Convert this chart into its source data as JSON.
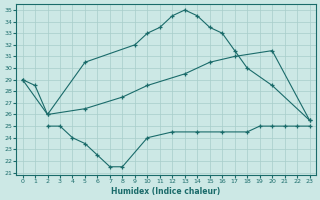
{
  "xlabel": "Humidex (Indice chaleur)",
  "xlim": [
    -0.5,
    23.5
  ],
  "ylim": [
    20.8,
    35.5
  ],
  "xticks": [
    0,
    1,
    2,
    3,
    4,
    5,
    6,
    7,
    8,
    9,
    10,
    11,
    12,
    13,
    14,
    15,
    16,
    17,
    18,
    19,
    20,
    21,
    22,
    23
  ],
  "yticks": [
    21,
    22,
    23,
    24,
    25,
    26,
    27,
    28,
    29,
    30,
    31,
    32,
    33,
    34,
    35
  ],
  "bg_color": "#cce8e5",
  "grid_color": "#a8ceca",
  "line_color": "#1a6b6a",
  "line1_x": [
    0,
    1,
    2,
    5,
    9,
    10,
    11,
    12,
    13,
    14,
    15,
    16,
    17,
    18,
    20,
    23
  ],
  "line1_y": [
    29.0,
    28.5,
    26.0,
    30.5,
    32.0,
    33.0,
    33.5,
    34.5,
    35.0,
    34.5,
    33.5,
    33.0,
    31.5,
    30.0,
    28.5,
    25.5
  ],
  "line2_x": [
    2,
    3,
    4,
    5,
    6,
    7,
    8,
    10,
    12,
    14,
    16,
    18,
    19,
    20,
    21,
    22,
    23
  ],
  "line2_y": [
    25.0,
    25.0,
    24.0,
    23.5,
    22.5,
    21.5,
    21.5,
    24.0,
    24.5,
    24.5,
    24.5,
    24.5,
    25.0,
    25.0,
    25.0,
    25.0,
    25.0
  ],
  "line3_x": [
    0,
    2,
    5,
    8,
    10,
    13,
    15,
    17,
    20,
    23
  ],
  "line3_y": [
    29.0,
    26.0,
    26.5,
    27.5,
    28.5,
    29.5,
    30.5,
    31.0,
    31.5,
    25.5
  ]
}
